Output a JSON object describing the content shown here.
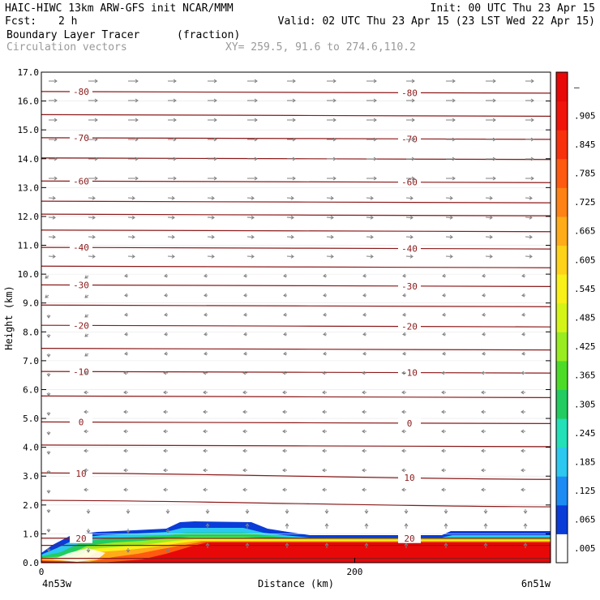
{
  "header": {
    "title_left": "HAIC-HIWC 13km ARW-GFS init    NCAR/MMM",
    "init": "Init: 00 UTC Thu 23 Apr 15",
    "fcst_label": "Fcst:",
    "fcst_value": "2 h",
    "valid": "Valid: 02 UTC Thu 23 Apr 15 (23 LST Wed 22 Apr 15)",
    "field_name": "Boundary Layer Tracer",
    "field_unit": "(fraction)",
    "overlay_name": "Circulation vectors",
    "xy": "XY= 259.5, 91.6 to 274.6,110.2"
  },
  "chart_data": {
    "type": "heatmap",
    "xlabel": "Distance (km)",
    "ylabel": "Height (km)",
    "xlim": [
      0,
      325
    ],
    "ylim": [
      0,
      17
    ],
    "y_ticks": [
      "0.0",
      "1.0",
      "2.0",
      "3.0",
      "4.0",
      "5.0",
      "6.0",
      "7.0",
      "8.0",
      "9.0",
      "10.0",
      "11.0",
      "12.0",
      "13.0",
      "14.0",
      "15.0",
      "16.0",
      "17.0"
    ],
    "x_ticks": [
      {
        "x": 0,
        "label": "0"
      },
      {
        "x": 200,
        "label": "200"
      }
    ],
    "x_endpoints": {
      "left": "4n53w",
      "right": "6n51w"
    },
    "colorbar": {
      "labels": [
        ".005",
        ".065",
        ".125",
        ".185",
        ".245",
        ".305",
        ".365",
        ".425",
        ".485",
        ".545",
        ".605",
        ".665",
        ".725",
        ".785",
        ".845",
        ".905",
        "–"
      ],
      "colors": [
        "#ffffff",
        "#0a3cd8",
        "#1c8cf4",
        "#2cc8f0",
        "#22e0b8",
        "#22cc60",
        "#4cdc28",
        "#98ec20",
        "#d4f418",
        "#f8f018",
        "#ffd21a",
        "#ffac18",
        "#ff8214",
        "#ff5a10",
        "#f8300c",
        "#f0140a",
        "#e80808"
      ]
    },
    "isotherms": [
      {
        "y": 0.15,
        "label": ""
      },
      {
        "y": 0.6,
        "label": ""
      },
      {
        "y": 0.85,
        "label": "20"
      },
      {
        "y": 2.05,
        "label": ""
      },
      {
        "y": 3.0,
        "label": "10"
      },
      {
        "y": 4.05,
        "label": ""
      },
      {
        "y": 4.85,
        "label": "0"
      },
      {
        "y": 5.75,
        "label": ""
      },
      {
        "y": 6.6,
        "label": "-10"
      },
      {
        "y": 7.4,
        "label": ""
      },
      {
        "y": 8.2,
        "label": "-20"
      },
      {
        "y": 8.9,
        "label": ""
      },
      {
        "y": 9.6,
        "label": "-30"
      },
      {
        "y": 10.25,
        "label": ""
      },
      {
        "y": 10.9,
        "label": "-40"
      },
      {
        "y": 11.5,
        "label": ""
      },
      {
        "y": 12.05,
        "label": ""
      },
      {
        "y": 12.5,
        "label": ""
      },
      {
        "y": 13.2,
        "label": "-60"
      },
      {
        "y": 14.0,
        "label": ""
      },
      {
        "y": 14.7,
        "label": "-70"
      },
      {
        "y": 15.5,
        "label": ""
      },
      {
        "y": 16.3,
        "label": "-80"
      }
    ]
  }
}
